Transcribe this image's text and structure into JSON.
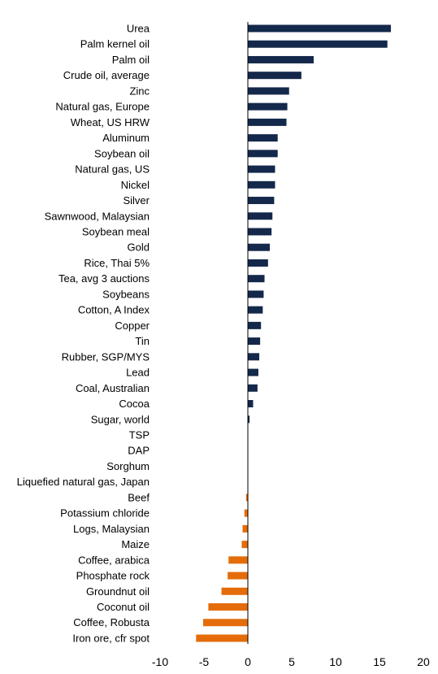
{
  "chart_data": {
    "type": "bar",
    "orientation": "horizontal",
    "title": "",
    "xlabel": "",
    "ylabel": "",
    "xlim": [
      -10,
      20
    ],
    "xticks": [
      "-10",
      "-5",
      "0",
      "5",
      "10",
      "15",
      "20"
    ],
    "grid": false,
    "legend": "none",
    "colors": {
      "positive": "#14284b",
      "negative": "#e46c0a",
      "axis": "#000000"
    },
    "categories": [
      "Urea",
      "Palm kernel oil",
      "Palm oil",
      "Crude oil, average",
      "Zinc",
      "Natural gas, Europe",
      "Wheat, US HRW",
      "Aluminum",
      "Soybean oil",
      "Natural gas, US",
      "Nickel",
      "Silver",
      "Sawnwood, Malaysian",
      "Soybean meal",
      "Gold",
      "Rice, Thai 5%",
      "Tea, avg 3 auctions",
      "Soybeans",
      "Cotton, A Index",
      "Copper",
      "Tin",
      "Rubber, SGP/MYS",
      "Lead",
      "Coal, Australian",
      "Cocoa",
      "Sugar, world",
      "TSP",
      "DAP",
      "Sorghum",
      "Liquefied natural gas, Japan",
      "Beef",
      "Potassium chloride",
      "Logs, Malaysian",
      "Maize",
      "Coffee, arabica",
      "Phosphate rock",
      "Groundnut oil",
      "Coconut oil",
      "Coffee, Robusta",
      "Iron ore, cfr spot"
    ],
    "values": [
      16.3,
      15.9,
      7.5,
      6.1,
      4.7,
      4.5,
      4.4,
      3.4,
      3.4,
      3.1,
      3.1,
      3.0,
      2.8,
      2.7,
      2.5,
      2.3,
      1.9,
      1.8,
      1.7,
      1.5,
      1.4,
      1.3,
      1.2,
      1.1,
      0.6,
      0.2,
      0,
      0,
      0,
      0,
      -0.2,
      -0.4,
      -0.6,
      -0.7,
      -2.2,
      -2.3,
      -3.0,
      -4.5,
      -5.1,
      -5.9
    ]
  }
}
